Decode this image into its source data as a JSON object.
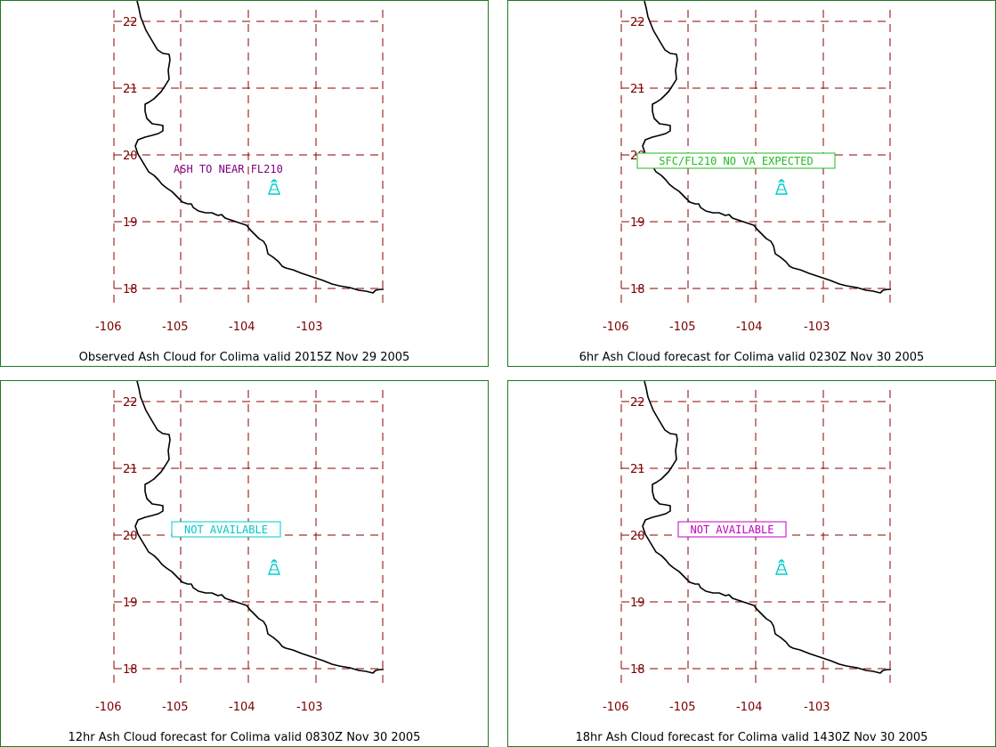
{
  "colors": {
    "border": "#1f7a1f",
    "grid": "#8b0000",
    "tick_labels": "#7a0000",
    "coastline": "#000000",
    "volcano": "#00cccc",
    "note_purple": "#800080",
    "note_green": "#22bb22",
    "note_cyan": "#00c8c8",
    "note_magenta": "#c000c0"
  },
  "map": {
    "lon_ticks": [
      "-106",
      "-105",
      "-104",
      "-103"
    ],
    "lat_ticks": [
      "22",
      "21",
      "20",
      "19",
      "18"
    ],
    "volcano_icon": "volcano-icon"
  },
  "panels": [
    {
      "caption": "Observed Ash Cloud for Colima valid 2015Z Nov 29 2005",
      "note": "ASH TO NEAR FL210",
      "note_style": "plain",
      "note_color": "#800080"
    },
    {
      "caption": "6hr Ash Cloud forecast for Colima valid 0230Z Nov 30 2005",
      "note": "SFC/FL210 NO VA EXPECTED",
      "note_style": "boxed",
      "note_color": "#22bb22"
    },
    {
      "caption": "12hr Ash Cloud forecast for Colima valid 0830Z Nov 30 2005",
      "note": "NOT AVAILABLE",
      "note_style": "boxed",
      "note_color": "#00c8c8"
    },
    {
      "caption": "18hr Ash Cloud forecast for Colima valid 1430Z Nov 30 2005",
      "note": "NOT AVAILABLE",
      "note_style": "boxed",
      "note_color": "#c000c0"
    }
  ]
}
